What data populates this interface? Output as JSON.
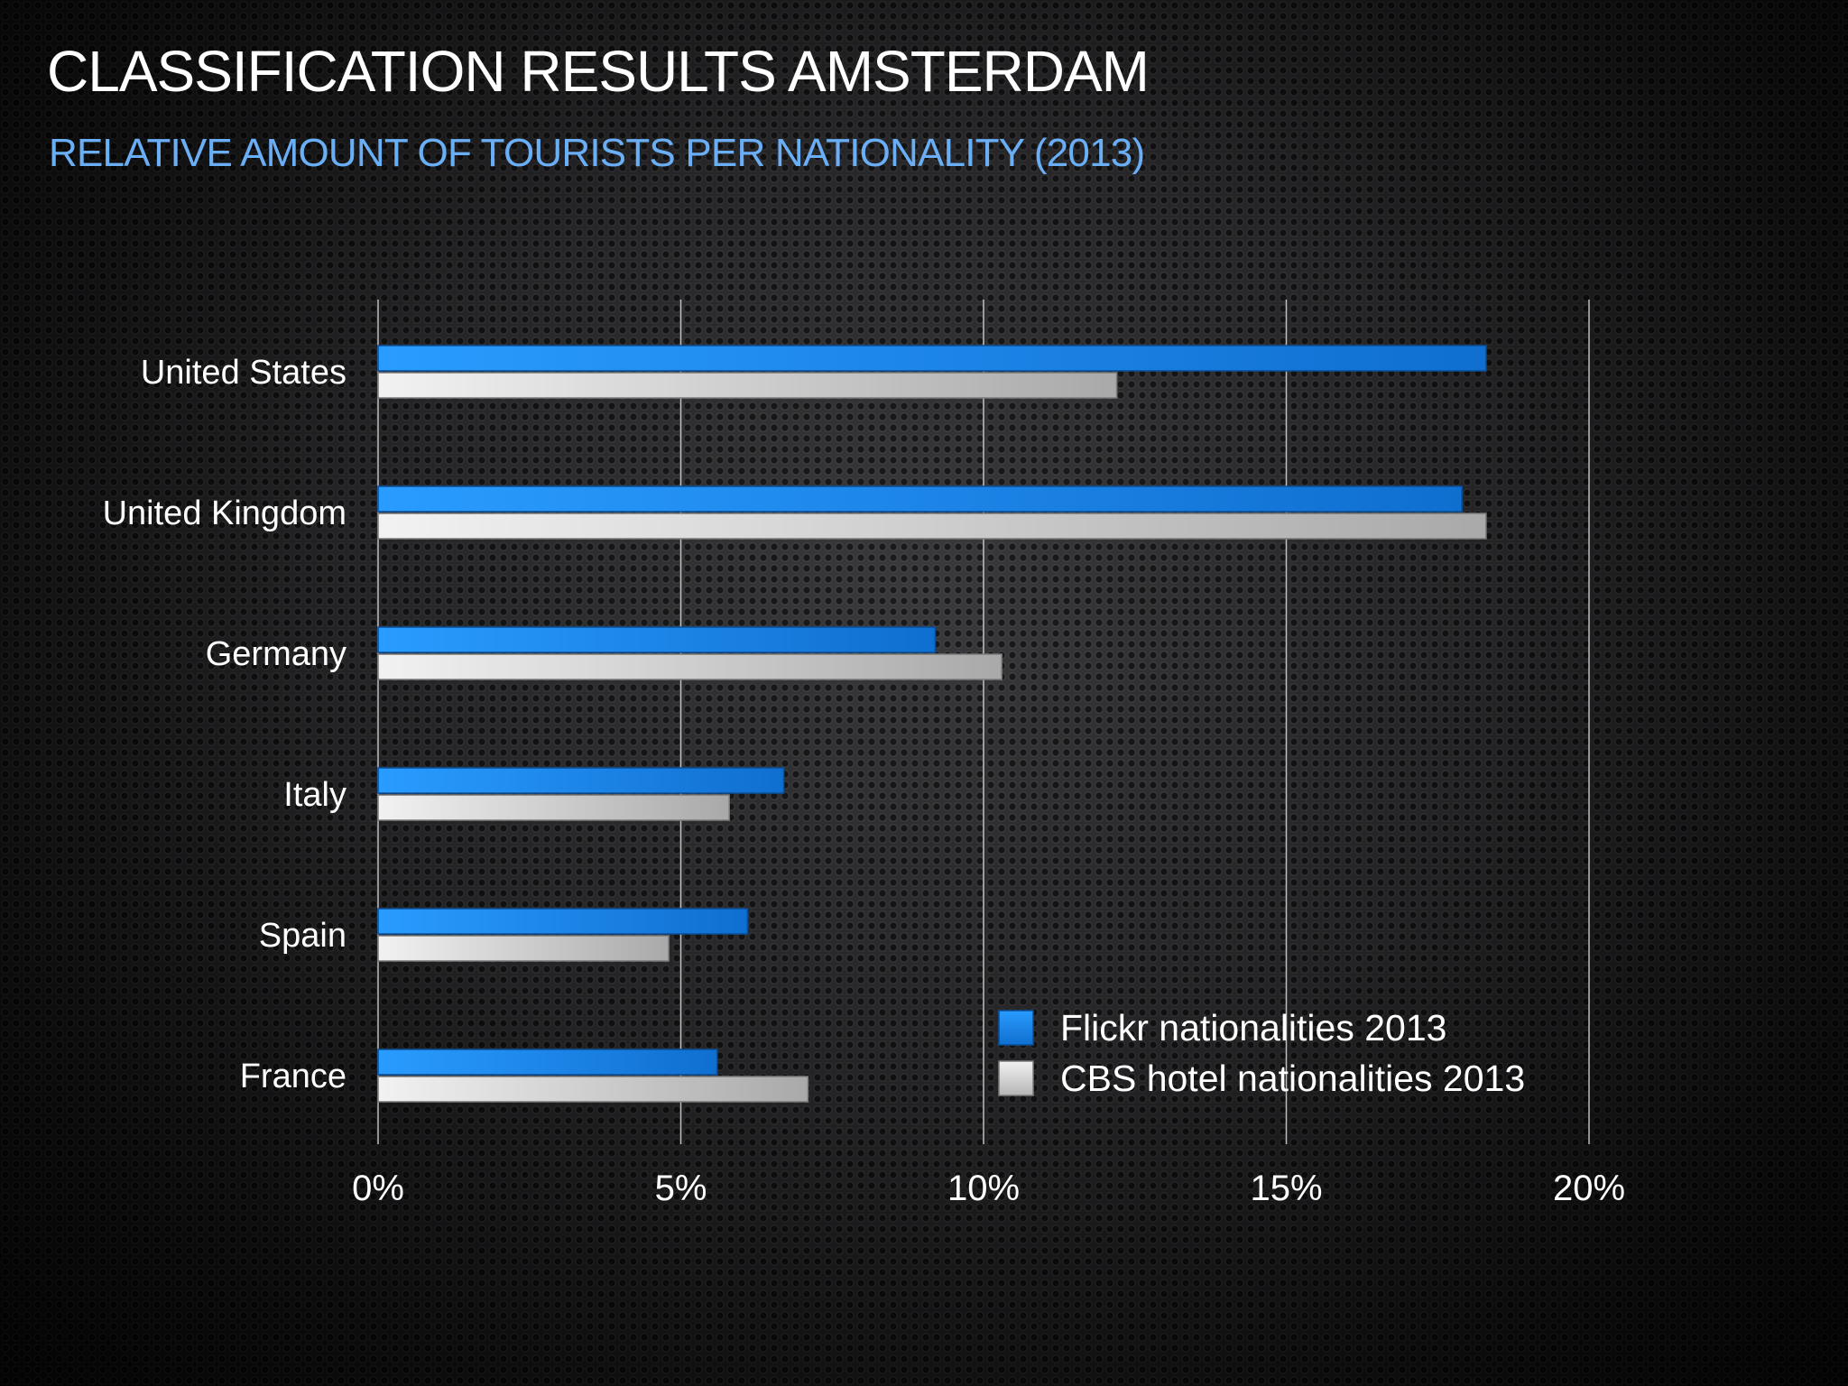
{
  "slide": {
    "title": "CLASSIFICATION RESULTS AMSTERDAM",
    "subtitle": "RELATIVE AMOUNT OF TOURISTS PER NATIONALITY (2013)"
  },
  "colors": {
    "flickr": "#1a86e8",
    "cbs": "#d6d6d6",
    "title": "#ffffff",
    "subtitle": "#6aaef5"
  },
  "chart_data": {
    "type": "bar",
    "orientation": "horizontal",
    "categories": [
      "United States",
      "United Kingdom",
      "Germany",
      "Italy",
      "Spain",
      "France"
    ],
    "series": [
      {
        "name": "Flickr nationalities 2013",
        "values": [
          18.3,
          17.9,
          9.2,
          6.7,
          6.1,
          5.6
        ]
      },
      {
        "name": "CBS hotel nationalities 2013",
        "values": [
          12.2,
          18.3,
          10.3,
          5.8,
          4.8,
          7.1
        ]
      }
    ],
    "xlim": [
      0,
      20
    ],
    "ticks": [
      0,
      5,
      10,
      15,
      20
    ],
    "tick_labels": [
      "0%",
      "5%",
      "10%",
      "15%",
      "20%"
    ],
    "grid": true,
    "legend_position": "bottom-right-inside"
  }
}
